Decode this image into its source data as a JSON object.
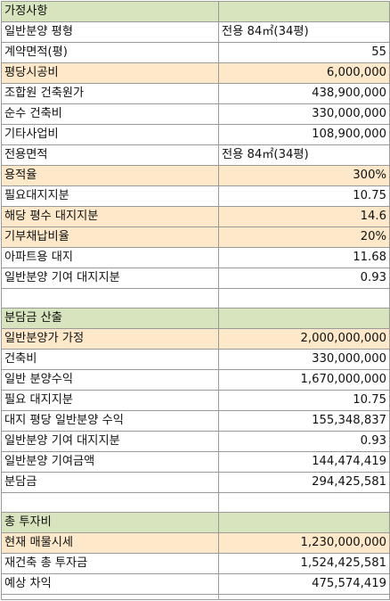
{
  "colors": {
    "header_bg": "#d7e4bd",
    "highlight_bg": "#fde9c9",
    "grid_line": "#9a9a9a",
    "text": "#111111"
  },
  "sections": [
    {
      "title": "가정사항",
      "rows": [
        {
          "label": "일반분양 평형",
          "value": "전용 84㎡(34평)",
          "align": "left",
          "highlight": false
        },
        {
          "label": "계약면적(평)",
          "value": "55",
          "align": "right",
          "highlight": false
        },
        {
          "label": "평당시공비",
          "value": "6,000,000",
          "align": "right",
          "highlight": true
        },
        {
          "label": "조합원 건축원가",
          "value": "438,900,000",
          "align": "right",
          "highlight": false
        },
        {
          "label": "순수 건축비",
          "value": "330,000,000",
          "align": "right",
          "highlight": false
        },
        {
          "label": "기타사업비",
          "value": "108,900,000",
          "align": "right",
          "highlight": false
        },
        {
          "label": "전용면적",
          "value": "전용 84㎡(34평)",
          "align": "left",
          "highlight": false
        },
        {
          "label": "용적율",
          "value": "300%",
          "align": "right",
          "highlight": true
        },
        {
          "label": "필요대지지분",
          "value": "10.75",
          "align": "right",
          "highlight": false
        },
        {
          "label": "해당 평수 대지지분",
          "value": "14.6",
          "align": "right",
          "highlight": true
        },
        {
          "label": "기부채납비율",
          "value": "20%",
          "align": "right",
          "highlight": true
        },
        {
          "label": "아파트용 대지",
          "value": "11.68",
          "align": "right",
          "highlight": false
        },
        {
          "label": "일반분양 기여 대지지분",
          "value": "0.93",
          "align": "right",
          "highlight": false
        }
      ]
    },
    {
      "title": "분담금 산출",
      "rows": [
        {
          "label": "일반분양가 가정",
          "value": "2,000,000,000",
          "align": "right",
          "highlight": true
        },
        {
          "label": "건축비",
          "value": "330,000,000",
          "align": "right",
          "highlight": false
        },
        {
          "label": "일반 분양수익",
          "value": "1,670,000,000",
          "align": "right",
          "highlight": false
        },
        {
          "label": "필요 대지지분",
          "value": "10.75",
          "align": "right",
          "highlight": false
        },
        {
          "label": "대지 평당 일반분양 수익",
          "value": "155,348,837",
          "align": "right",
          "highlight": false
        },
        {
          "label": "일반분양 기여 대지지분",
          "value": "0.93",
          "align": "right",
          "highlight": false
        },
        {
          "label": "일반분양 기여금액",
          "value": "144,474,419",
          "align": "right",
          "highlight": false
        },
        {
          "label": "분담금",
          "value": "294,425,581",
          "align": "right",
          "highlight": false
        }
      ]
    },
    {
      "title": "총 투자비",
      "rows": [
        {
          "label": "현재 매물시세",
          "value": "1,230,000,000",
          "align": "right",
          "highlight": true
        },
        {
          "label": "재건축 총 투자금",
          "value": "1,524,425,581",
          "align": "right",
          "highlight": false
        },
        {
          "label": "예상 차익",
          "value": "475,574,419",
          "align": "right",
          "highlight": false
        }
      ]
    }
  ]
}
